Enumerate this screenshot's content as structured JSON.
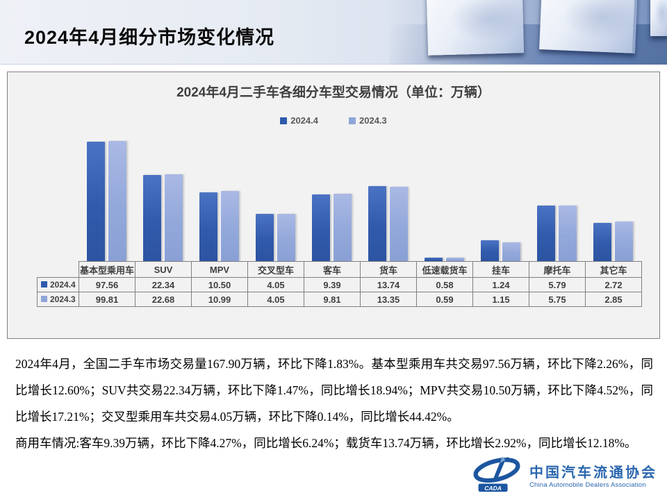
{
  "page_title": "2024年4月细分市场变化情况",
  "chart_panel": {
    "title": "2024年4月二手车各细分车型交易情况（单位：万辆）"
  },
  "chart_data": {
    "type": "bar",
    "title": "2024年4月二手车各细分车型交易情况",
    "unit": "万辆",
    "scale": "log",
    "axis_note": "no visible value axis; bar heights follow a logarithmic scale, data labels shown in table below",
    "legend_position": "top",
    "grid": false,
    "categories": [
      "基本型乘用车",
      "SUV",
      "MPV",
      "交叉型车",
      "客车",
      "货车",
      "低速载货车",
      "挂车",
      "摩托车",
      "其它车"
    ],
    "series": [
      {
        "name": "2024.4",
        "color": "#2f5aab",
        "values": [
          97.56,
          22.34,
          10.5,
          4.05,
          9.39,
          13.74,
          0.58,
          1.24,
          5.79,
          2.72
        ]
      },
      {
        "name": "2024.3",
        "color": "#8fa5d8",
        "values": [
          99.81,
          22.68,
          10.99,
          4.05,
          9.81,
          13.35,
          0.59,
          1.15,
          5.75,
          2.85
        ]
      }
    ]
  },
  "body": {
    "paragraphs": [
      "2024年4月，全国二手车市场交易量167.90万辆，环比下降1.83%。基本型乘用车共交易97.56万辆，环比下降2.26%，同比增长12.60%；SUV共交易22.34万辆，环比下降1.47%，同比增长18.94%；MPV共交易10.50万辆，环比下降4.52%，同比增长17.21%；交叉型乘用车共交易4.05万辆，环比下降0.14%，同比增长44.42%。",
      "商用车情况:客车9.39万辆，环比下降4.27%，同比增长6.24%；载货车13.74万辆，环比增长2.92%，同比增长12.18%。"
    ]
  },
  "logo": {
    "abbr": "CADA",
    "cn": "中国汽车流通协会",
    "en": "China Automobile Dealers Association"
  }
}
